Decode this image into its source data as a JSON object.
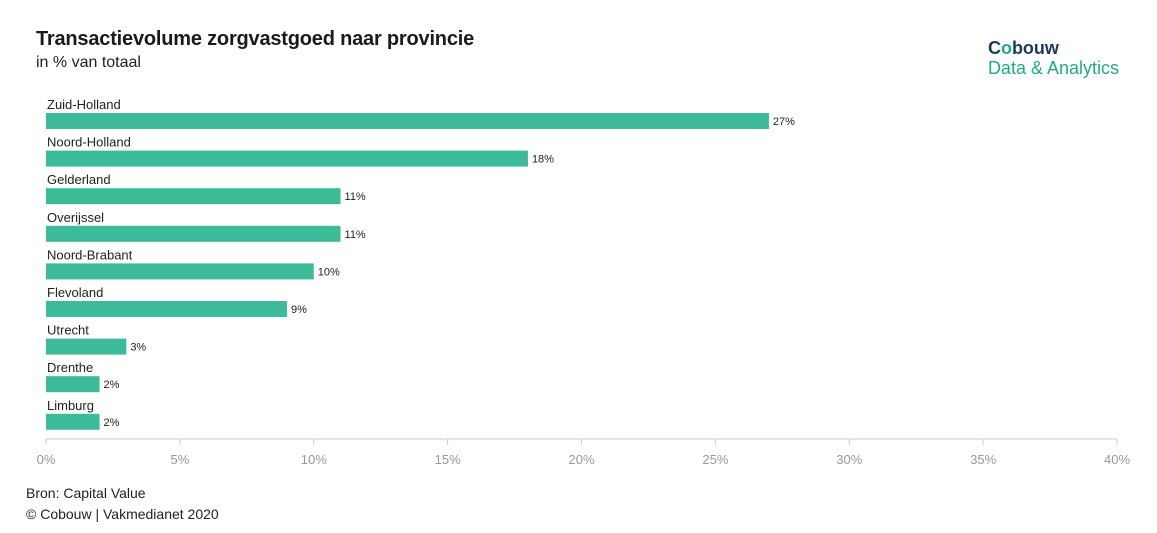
{
  "header": {
    "title": "Transactievolume zorgvastgoed naar provincie",
    "subtitle": "in % van totaal"
  },
  "logo": {
    "brand_pre": "C",
    "brand_o": "o",
    "brand_post": "bouw",
    "tagline": "Data & Analytics"
  },
  "footer": {
    "source": "Bron: Capital Value",
    "copyright": "© Cobouw | Vakmedianet 2020"
  },
  "colors": {
    "bar": "#3dba98",
    "axis": "#cccccc",
    "brand_dark": "#1d3a5c",
    "brand_green": "#22a98c"
  },
  "chart_data": {
    "type": "bar",
    "orientation": "horizontal",
    "categories": [
      "Zuid-Holland",
      "Noord-Holland",
      "Gelderland",
      "Overijssel",
      "Noord-Brabant",
      "Flevoland",
      "Utrecht",
      "Drenthe",
      "Limburg"
    ],
    "values": [
      27,
      18,
      11,
      11,
      10,
      9,
      3,
      2,
      2
    ],
    "value_labels": [
      "27%",
      "18%",
      "11%",
      "11%",
      "10%",
      "9%",
      "3%",
      "2%",
      "2%"
    ],
    "title": "Transactievolume zorgvastgoed naar provincie",
    "subtitle": "in % van totaal",
    "xlim": [
      0,
      40
    ],
    "x_ticks": [
      0,
      5,
      10,
      15,
      20,
      25,
      30,
      35,
      40
    ],
    "x_tick_labels": [
      "0%",
      "5%",
      "10%",
      "15%",
      "20%",
      "25%",
      "30%",
      "35%",
      "40%"
    ],
    "grid": false,
    "legend": "none"
  }
}
